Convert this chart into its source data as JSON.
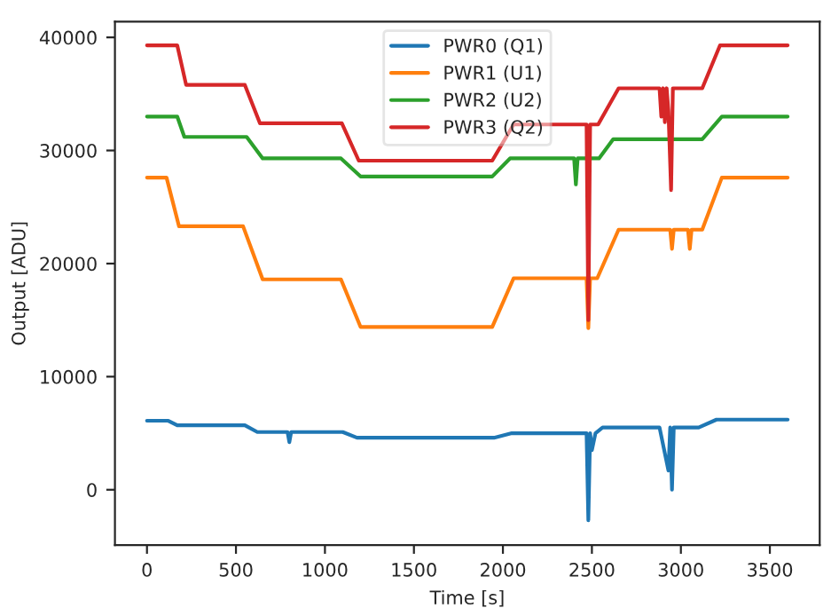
{
  "chart_data": {
    "type": "line",
    "xlabel": "Time [s]",
    "ylabel": "Output [ADU]",
    "xlim": [
      -180,
      3780
    ],
    "ylim": [
      -4900,
      41400
    ],
    "xticks": [
      0,
      500,
      1000,
      1500,
      2000,
      2500,
      3000,
      3500
    ],
    "yticks": [
      0,
      10000,
      20000,
      30000,
      40000
    ],
    "legend": "top",
    "grid": false,
    "marker": "none",
    "line_style": "solid",
    "series": [
      {
        "name": "PWR0 (Q1)",
        "color": "#1f77b4",
        "x": [
          0,
          120,
          170,
          550,
          620,
          790,
          800,
          810,
          1100,
          1180,
          1950,
          2050,
          2470,
          2480,
          2490,
          2500,
          2520,
          2560,
          2880,
          2930,
          2940,
          2950,
          2960,
          2970,
          3100,
          3200,
          3600
        ],
        "values": [
          6100,
          6100,
          5700,
          5700,
          5100,
          5100,
          4200,
          5100,
          5100,
          4600,
          4600,
          5000,
          5000,
          -2700,
          5000,
          3500,
          5000,
          5500,
          5500,
          1700,
          5500,
          0,
          5500,
          5500,
          5500,
          6200,
          6200
        ]
      },
      {
        "name": "PWR1 (U1)",
        "color": "#ff7f0e",
        "x": [
          0,
          110,
          180,
          540,
          650,
          1090,
          1200,
          1940,
          2060,
          2470,
          2480,
          2490,
          2530,
          2650,
          2940,
          2950,
          2960,
          3040,
          3050,
          3060,
          3120,
          3230,
          3600
        ],
        "values": [
          27600,
          27600,
          23300,
          23300,
          18600,
          18600,
          14400,
          14400,
          18700,
          18700,
          14300,
          18700,
          18700,
          23000,
          23000,
          21300,
          23000,
          23000,
          21300,
          23000,
          23000,
          27600,
          27600
        ]
      },
      {
        "name": "PWR2 (U2)",
        "color": "#2ca02c",
        "x": [
          0,
          170,
          210,
          560,
          650,
          1090,
          1200,
          1940,
          2040,
          2400,
          2410,
          2420,
          2540,
          2620,
          3120,
          3230,
          3600
        ],
        "values": [
          33000,
          33000,
          31200,
          31200,
          29300,
          29300,
          27700,
          27700,
          29300,
          29300,
          27000,
          29300,
          29300,
          31000,
          31000,
          33000,
          33000
        ]
      },
      {
        "name": "PWR3 (Q2)",
        "color": "#d62728",
        "x": [
          0,
          170,
          220,
          550,
          635,
          1095,
          1190,
          1940,
          2060,
          2470,
          2480,
          2490,
          2535,
          2650,
          2880,
          2890,
          2900,
          2910,
          2920,
          2930,
          2945,
          2955,
          3120,
          3220,
          3600
        ],
        "values": [
          39300,
          39300,
          35800,
          35800,
          32400,
          32400,
          29100,
          29100,
          32300,
          32300,
          15000,
          32300,
          32300,
          35500,
          35500,
          33000,
          35500,
          32500,
          35500,
          33500,
          26500,
          35500,
          35500,
          39300,
          39300
        ]
      }
    ]
  }
}
